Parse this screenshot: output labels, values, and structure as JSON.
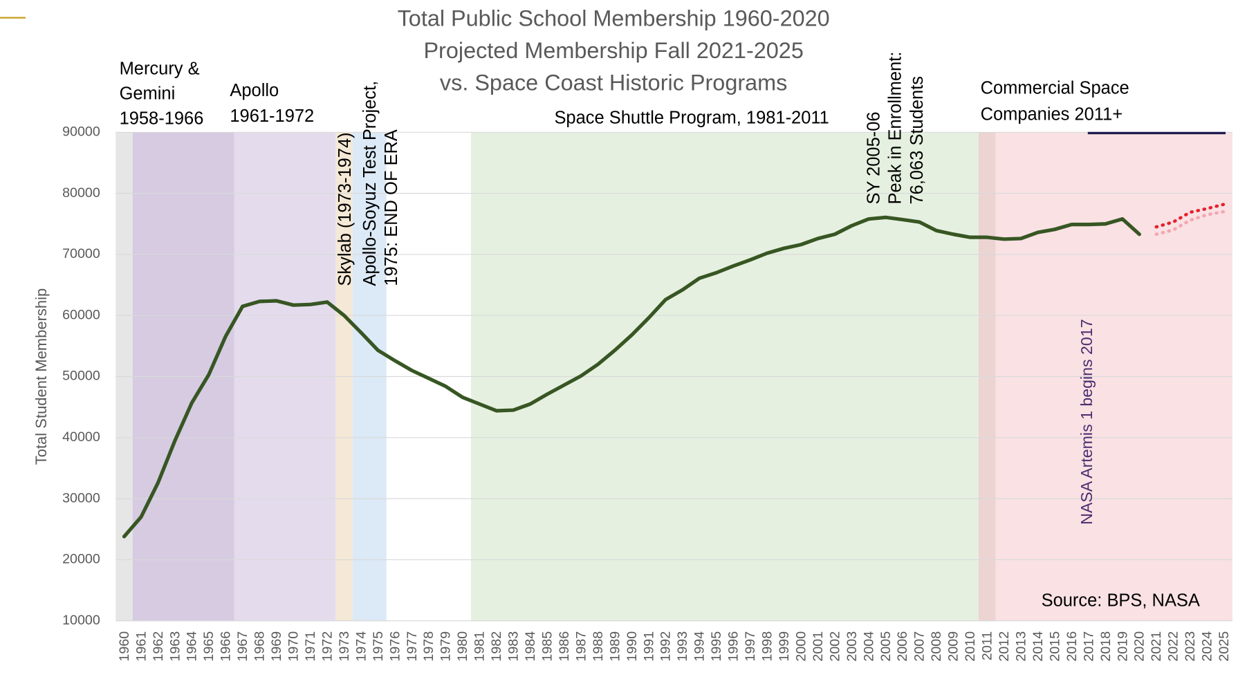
{
  "chart_data": {
    "type": "line",
    "title": [
      "Total Public School Membership 1960-2020",
      "Projected Membership Fall 2021-2025",
      "vs. Space Coast Historic Programs"
    ],
    "y_label": "Total Student Membership",
    "source": "Source: BPS, NASA",
    "categories": [
      "1960",
      "1961",
      "1962",
      "1963",
      "1964",
      "1965",
      "1966",
      "1967",
      "1968",
      "1969",
      "1970",
      "1971",
      "1972",
      "1973",
      "1974",
      "1975",
      "1976",
      "1977",
      "1978",
      "1979",
      "1980",
      "1981",
      "1982",
      "1983",
      "1984",
      "1985",
      "1986",
      "1987",
      "1988",
      "1989",
      "1990",
      "1991",
      "1992",
      "1993",
      "1994",
      "1995",
      "1996",
      "1997",
      "1998",
      "1999",
      "2000",
      "2001",
      "2002",
      "2003",
      "2004",
      "2005",
      "2006",
      "2007",
      "2008",
      "2009",
      "2010",
      "2011",
      "2012",
      "2013",
      "2014",
      "2015",
      "2016",
      "2017",
      "2018",
      "2019",
      "2020",
      "2021",
      "2022",
      "2023",
      "2024",
      "2025"
    ],
    "series": [
      {
        "color": "#375623",
        "dash": false,
        "values": [
          23800,
          27000,
          32600,
          39500,
          45700,
          50300,
          56600,
          61500,
          62300,
          62400,
          61700,
          61800,
          62200,
          60000,
          57200,
          54300,
          52600,
          51000,
          49700,
          48400,
          46600,
          45500,
          44400,
          44500,
          45500,
          47100,
          48600,
          50100,
          52000,
          54300,
          56800,
          59600,
          62600,
          64200,
          66100,
          67000,
          68100,
          69100,
          70200,
          71000,
          71600,
          72600,
          73300,
          74700,
          75800,
          76063,
          75700,
          75300,
          73900,
          73300,
          72800,
          72800,
          72500,
          72600,
          73600,
          74100,
          74900,
          74900,
          75000,
          75800,
          73300,
          null,
          null,
          null,
          null,
          null
        ]
      },
      {
        "color": "#e8202a",
        "dash": true,
        "values": [
          null,
          null,
          null,
          null,
          null,
          null,
          null,
          null,
          null,
          null,
          null,
          null,
          null,
          null,
          null,
          null,
          null,
          null,
          null,
          null,
          null,
          null,
          null,
          null,
          null,
          null,
          null,
          null,
          null,
          null,
          null,
          null,
          null,
          null,
          null,
          null,
          null,
          null,
          null,
          null,
          null,
          null,
          null,
          null,
          null,
          null,
          null,
          null,
          null,
          null,
          null,
          null,
          null,
          null,
          null,
          null,
          null,
          null,
          null,
          null,
          null,
          74500,
          75300,
          76900,
          77500,
          78200
        ]
      },
      {
        "color": "#f4a6b0",
        "dash": true,
        "values": [
          null,
          null,
          null,
          null,
          null,
          null,
          null,
          null,
          null,
          null,
          null,
          null,
          null,
          null,
          null,
          null,
          null,
          null,
          null,
          null,
          null,
          null,
          null,
          null,
          null,
          null,
          null,
          null,
          null,
          null,
          null,
          null,
          null,
          null,
          null,
          null,
          null,
          null,
          null,
          null,
          null,
          null,
          null,
          null,
          null,
          null,
          null,
          null,
          null,
          null,
          null,
          null,
          null,
          null,
          null,
          null,
          null,
          null,
          null,
          null,
          null,
          73300,
          74000,
          75600,
          76500,
          77000
        ]
      }
    ],
    "ylim": [
      10000,
      90000
    ],
    "yticks": [
      10000,
      20000,
      30000,
      40000,
      50000,
      60000,
      70000,
      80000,
      90000
    ],
    "grid": true,
    "regions": [
      {
        "from": "1960",
        "to": "1960",
        "color": "#e6e6e6"
      },
      {
        "from": "1961",
        "to": "1972",
        "color": "#e4dced",
        "label": [
          "Apollo",
          "1961-1972"
        ]
      },
      {
        "from": "1961",
        "to": "1966",
        "color": "#d6cbe1",
        "label": [
          "Mercury &",
          "Gemini",
          "1958-1966"
        ]
      },
      {
        "from": "1973",
        "to": "1973",
        "color": "#f4e8d6",
        "label": [
          "Skylab  (1973-1974)"
        ]
      },
      {
        "from": "1974",
        "to": "1975",
        "color": "#dce9f6",
        "label": [
          "Apollo-Soyuz Test Project,",
          "1975: END OF ERA"
        ]
      },
      {
        "from": "1981",
        "to": "2010",
        "color": "#e6f0e0",
        "label": [
          "Space Shuttle Program, 1981-2011"
        ]
      },
      {
        "from": "2011",
        "to": "2025",
        "color": "#f9e1e4",
        "label": [
          "Commercial Space",
          "Companies 2011+"
        ]
      },
      {
        "from": "2011",
        "to": "2011",
        "color": "#ecd4d2"
      }
    ],
    "annotations": [
      {
        "lines": [
          "SY 2005-06",
          "Peak in Enrollment:",
          "76,063 Students"
        ]
      },
      {
        "lines": [
          "NASA Artemis 1 begins 2017"
        ]
      }
    ]
  }
}
